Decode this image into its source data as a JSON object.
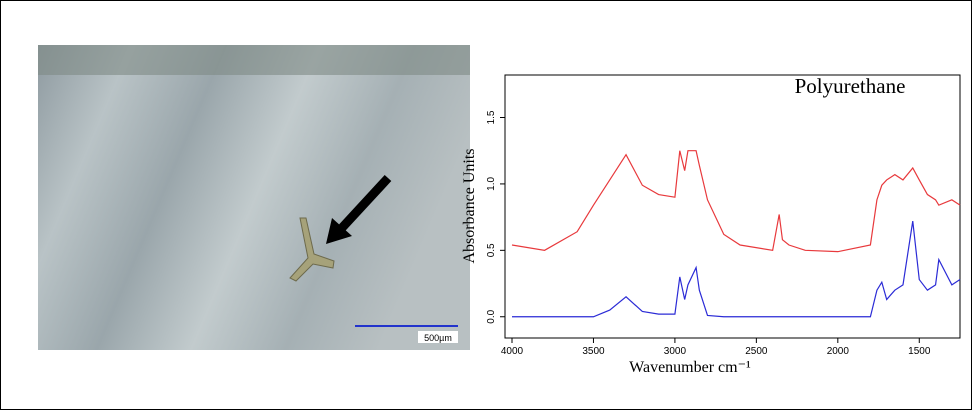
{
  "chart_data": {
    "type": "line",
    "annotation": "Polyurethane",
    "scale_bar_label": "500µm",
    "x_label": "Wavenumber cm⁻¹",
    "y_label": "Absorbance Units",
    "x": [
      4000,
      3800,
      3600,
      3500,
      3400,
      3300,
      3200,
      3100,
      3000,
      2970,
      2940,
      2920,
      2870,
      2850,
      2800,
      2700,
      2600,
      2400,
      2360,
      2340,
      2300,
      2200,
      2000,
      1800,
      1760,
      1730,
      1700,
      1650,
      1600,
      1540,
      1500,
      1450,
      1400,
      1380,
      1300,
      1250
    ],
    "series": [
      {
        "color": "#e8393c",
        "values": [
          0.54,
          0.5,
          0.64,
          0.84,
          1.03,
          1.22,
          0.99,
          0.92,
          0.9,
          1.25,
          1.1,
          1.25,
          1.25,
          1.14,
          0.88,
          0.62,
          0.54,
          0.5,
          0.77,
          0.58,
          0.54,
          0.5,
          0.49,
          0.54,
          0.88,
          0.99,
          1.03,
          1.07,
          1.03,
          1.12,
          1.03,
          0.92,
          0.88,
          0.84,
          0.88,
          0.84
        ]
      },
      {
        "color": "#2b2bd6",
        "values": [
          0,
          0,
          0,
          0,
          0.05,
          0.15,
          0.04,
          0.02,
          0.02,
          0.3,
          0.13,
          0.24,
          0.37,
          0.2,
          0.01,
          0,
          0,
          0,
          0,
          0,
          0,
          0,
          0,
          0,
          0.2,
          0.26,
          0.13,
          0.2,
          0.24,
          0.72,
          0.28,
          0.2,
          0.24,
          0.43,
          0.24,
          0.28
        ]
      }
    ],
    "xlim": [
      4000,
      1250
    ],
    "xticks": [
      4000,
      3500,
      3000,
      2500,
      2000,
      1500
    ],
    "ylim": [
      -0.16,
      1.82
    ],
    "yticks": [
      {
        "value": 0,
        "label": "0.0"
      },
      0.5,
      {
        "value": 1,
        "label": "1.0"
      },
      1.5
    ]
  }
}
